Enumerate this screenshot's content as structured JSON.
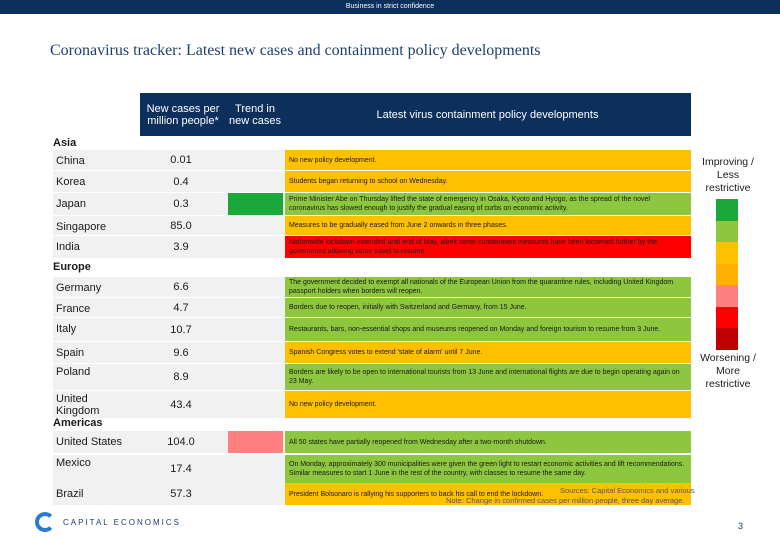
{
  "banner": "Business in strict confidence",
  "title": "Coronavirus tracker: Latest new cases and containment policy developments",
  "header": {
    "cases": "New cases per million people*",
    "trend": "Trend in new cases",
    "policy": "Latest virus containment policy developments"
  },
  "regions": {
    "asia": "Asia",
    "europe": "Europe",
    "americas": "Americas"
  },
  "colors": {
    "header": "#0c2f5c",
    "dark_green": "#1aa83b",
    "light_green": "#8dc63f",
    "yellow": "#ffc000",
    "orange": "#ffb000",
    "pink": "#ff8080",
    "red": "#ff0000",
    "dark_red": "#c00000"
  },
  "rows": [
    {
      "country": "China",
      "cases": "0.01",
      "trend": "",
      "policy": "No new policy development.",
      "policy_color": "#ffc000"
    },
    {
      "country": "Korea",
      "cases": "0.4",
      "trend": "",
      "policy": "Students began returning to school on Wednesday.",
      "policy_color": "#ffc000"
    },
    {
      "country": "Japan",
      "cases": "0.3",
      "trend": "#1aa83b",
      "policy": "Prime Minister Abe on Thursday lifted the state of emergency in Osaka, Kyoto and Hyogo, as the spread of the novel coronavirus has slowed enough to justify the gradual easing of curbs on economic activity.",
      "policy_color": "#8dc63f"
    },
    {
      "country": "Singapore",
      "cases": "85.0",
      "trend": "",
      "policy": "Measures to be gradually eased from June 2 onwards in three phases.",
      "policy_color": "#ffc000"
    },
    {
      "country": "India",
      "cases": "3.9",
      "trend": "",
      "policy": "Nationwide lockdown extended until end of May, albeit some containment measures have been loosened further by the government allowing some travel to resume.",
      "policy_color": "#ff0000"
    },
    {
      "country": "Germany",
      "cases": "6.6",
      "trend": "",
      "policy": "The government decided to exempt all nationals of the European Union from the quarantine rules, including United Kingdom passport holders when borders will reopen.",
      "policy_color": "#8dc63f"
    },
    {
      "country": "France",
      "cases": "4.7",
      "trend": "",
      "policy": "Borders due to reopen, initially with Switzerland and Germany, from 15 June.",
      "policy_color": "#8dc63f"
    },
    {
      "country": "Italy",
      "cases": "10.7",
      "trend": "",
      "policy": "Restaurants, bars, non-essential shops and museums reopened on Monday and foreign tourism to resume from 3 June.",
      "policy_color": "#8dc63f"
    },
    {
      "country": "Spain",
      "cases": "9.6",
      "trend": "",
      "policy": "Spanish Congress votes to extend 'state of alarm' until 7 June.",
      "policy_color": "#ffc000"
    },
    {
      "country": "Poland",
      "cases": "8.9",
      "trend": "",
      "policy": "Borders are likely to be open to international tourists from 13 June and international flights are due to begin operating again on 23 May.",
      "policy_color": "#8dc63f"
    },
    {
      "country": "United Kingdom",
      "cases": "43.4",
      "trend": "",
      "policy": "No new policy development.",
      "policy_color": "#ffc000"
    },
    {
      "country": "United States",
      "cases": "104.0",
      "trend": "#ff8080",
      "policy": "All 50 states have partially reopened from Wednesday after a two-month shutdown.",
      "policy_color": "#8dc63f"
    },
    {
      "country": "Mexico",
      "cases": "17.4",
      "trend": "",
      "policy": "On Monday, approximately 300 municipalities were given the green light to restart economic activities and lift recommendations. Similar measures to start 1 June in the rest of the country, with classes to resume the same day.",
      "policy_color": "#8dc63f"
    },
    {
      "country": "Brazil",
      "cases": "57.3",
      "trend": "",
      "policy": "President Bolsonaro is rallying his supporters to back his call to end the lockdown.",
      "policy_color": "#ffc000"
    }
  ],
  "scale": {
    "top": "Improving / Less restrictive",
    "bottom": "Worsening / More restrictive",
    "swatches": [
      "#1aa83b",
      "#8dc63f",
      "#ffc000",
      "#ffb000",
      "#ff8080",
      "#ff0000",
      "#c00000"
    ]
  },
  "footnote": {
    "sources": "Sources: Capital Economics and various",
    "note": "Note: Change in confirmed cases per million people, three day average."
  },
  "logo": "CAPITAL ECONOMICS",
  "page": "3"
}
